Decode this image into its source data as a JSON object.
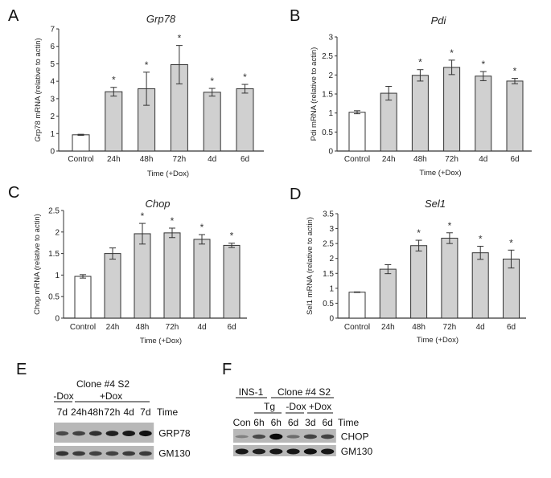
{
  "panel_letters": {
    "A": "A",
    "B": "B",
    "C": "C",
    "D": "D",
    "E": "E",
    "F": "F"
  },
  "colors": {
    "control_bar": "#ffffff",
    "treated_bar": "#d0d0d0",
    "axis": "#333333",
    "error_bar": "#333333"
  },
  "chart_data": [
    {
      "panel": "A",
      "type": "bar",
      "title": "Grp78",
      "ylabel": "Grp78 mRNA (relative to actin)",
      "xlabel": "Time (+Dox)",
      "categories": [
        "Control",
        "24h",
        "48h",
        "72h",
        "4d",
        "6d"
      ],
      "values": [
        0.93,
        3.4,
        3.57,
        4.95,
        3.37,
        3.57
      ],
      "errors": [
        0.03,
        0.25,
        0.95,
        1.1,
        0.22,
        0.25
      ],
      "significant": [
        false,
        true,
        true,
        true,
        true,
        true
      ],
      "significance_marker": "*",
      "ylim": [
        0,
        7
      ],
      "yticks": [
        "0",
        "1",
        "2",
        "3",
        "4",
        "5",
        "6",
        "7"
      ],
      "grid": false
    },
    {
      "panel": "B",
      "type": "bar",
      "title": "Pdi",
      "ylabel": "Pdi mRNA (relative to actin)",
      "xlabel": "Time (+Dox)",
      "categories": [
        "Control",
        "24h",
        "48h",
        "72h",
        "4d",
        "6d"
      ],
      "values": [
        1.02,
        1.52,
        1.99,
        2.2,
        1.97,
        1.84
      ],
      "errors": [
        0.04,
        0.18,
        0.15,
        0.19,
        0.12,
        0.07
      ],
      "significant": [
        false,
        false,
        true,
        true,
        true,
        true
      ],
      "significance_marker": "*",
      "ylim": [
        0,
        3
      ],
      "yticks": [
        "0",
        "0.5",
        "1",
        "1.5",
        "2",
        "2.5",
        "3"
      ],
      "grid": false
    },
    {
      "panel": "C",
      "type": "bar",
      "title": "Chop",
      "ylabel": "Chop mRNA (relative to actin)",
      "xlabel": "Time (+Dox)",
      "categories": [
        "Control",
        "24h",
        "48h",
        "72h",
        "4d",
        "6d"
      ],
      "values": [
        0.97,
        1.5,
        1.96,
        1.98,
        1.83,
        1.69
      ],
      "errors": [
        0.04,
        0.13,
        0.24,
        0.11,
        0.11,
        0.05
      ],
      "significant": [
        false,
        false,
        true,
        true,
        true,
        true
      ],
      "significance_marker": "*",
      "ylim": [
        0,
        2.5
      ],
      "yticks": [
        "0",
        "0.5",
        "1",
        "1.5",
        "2",
        "2.5"
      ],
      "grid": false
    },
    {
      "panel": "D",
      "type": "bar",
      "title": "Sel1",
      "ylabel": "Sel1 mRNA (relative to actin)",
      "xlabel": "Time (+Dox)",
      "categories": [
        "Control",
        "24h",
        "48h",
        "72h",
        "4d",
        "6d"
      ],
      "values": [
        0.87,
        1.64,
        2.43,
        2.68,
        2.19,
        1.98
      ],
      "errors": [
        0.01,
        0.15,
        0.18,
        0.18,
        0.22,
        0.3
      ],
      "significant": [
        false,
        false,
        true,
        true,
        true,
        true
      ],
      "significance_marker": "*",
      "ylim": [
        0,
        3.5
      ],
      "yticks": [
        "0",
        "0.5",
        "1",
        "1.5",
        "2",
        "2.5",
        "3",
        "3.5"
      ],
      "grid": false
    }
  ],
  "blot_e": {
    "header": "Clone #4 S2",
    "groups": [
      "-Dox",
      "+Dox"
    ],
    "lanes": [
      "7d",
      "24h",
      "48h",
      "72h",
      "4d",
      "7d"
    ],
    "time_label": "Time",
    "rows": [
      {
        "label": "GRP78",
        "intensities": [
          0.55,
          0.6,
          0.72,
          0.85,
          0.9,
          0.95
        ]
      },
      {
        "label": "GM130",
        "intensities": [
          0.7,
          0.65,
          0.6,
          0.6,
          0.65,
          0.65
        ]
      }
    ]
  },
  "blot_f": {
    "header_left": "INS-1",
    "header_right": "Clone #4 S2",
    "groups": [
      "Tg",
      "-Dox",
      "+Dox"
    ],
    "lanes": [
      "Con",
      "6h",
      "6h",
      "6d",
      "3d",
      "6d"
    ],
    "time_label": "Time",
    "rows": [
      {
        "label": "CHOP",
        "intensities": [
          0.15,
          0.55,
          1.0,
          0.3,
          0.6,
          0.6
        ]
      },
      {
        "label": "GM130",
        "intensities": [
          0.9,
          0.85,
          0.9,
          0.9,
          0.95,
          0.9
        ]
      }
    ]
  }
}
